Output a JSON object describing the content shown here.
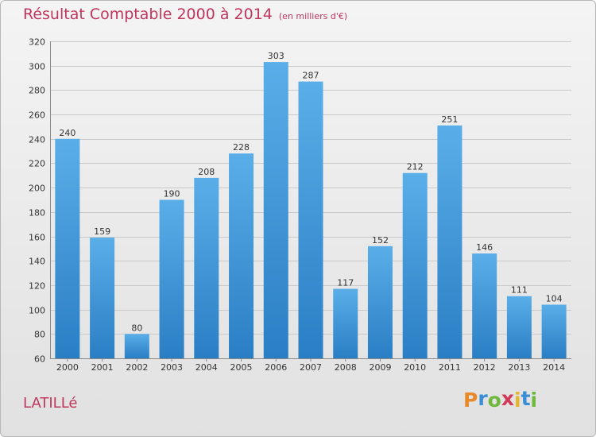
{
  "title": "Résultat Comptable 2000 à 2014",
  "unit_label": "(en milliers d'€)",
  "commune": "LATILLé",
  "logo": {
    "text": "Proxiti",
    "letters": [
      "P",
      "r",
      "o",
      "x",
      "i",
      "t",
      "i"
    ],
    "colors": [
      "#e8892a",
      "#3a8fd4",
      "#6fb83d",
      "#d23a5a",
      "#e8b62a",
      "#3a8fd4",
      "#6fb83d"
    ]
  },
  "colors": {
    "title": "#c0365d",
    "bar_top": "#5aaee8",
    "bar_bottom": "#2a7ec4"
  },
  "chart_data": {
    "type": "bar",
    "title": "Résultat Comptable 2000 à 2014",
    "xlabel": "",
    "ylabel": "",
    "ylim": [
      60,
      320
    ],
    "yticks": [
      60,
      80,
      100,
      120,
      140,
      160,
      180,
      200,
      220,
      240,
      260,
      280,
      300,
      320
    ],
    "grid": true,
    "categories": [
      "2000",
      "2001",
      "2002",
      "2003",
      "2004",
      "2005",
      "2006",
      "2007",
      "2008",
      "2009",
      "2010",
      "2011",
      "2012",
      "2013",
      "2014"
    ],
    "values": [
      240,
      159,
      80,
      190,
      208,
      228,
      303,
      287,
      117,
      152,
      212,
      251,
      146,
      111,
      104
    ]
  }
}
